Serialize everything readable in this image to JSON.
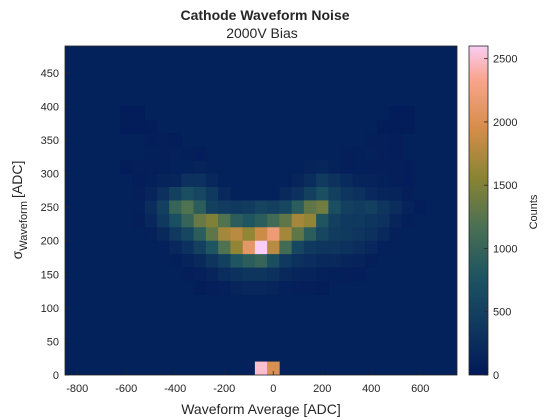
{
  "chart_data": {
    "type": "heatmap",
    "title": "Cathode Waveform Noise",
    "subtitle": "2000V Bias",
    "xlabel": "Waveform Average [ADC]",
    "ylabel_sigma": "σ",
    "ylabel_sub": "Waveform",
    "ylabel_unit": "[ADC]",
    "colorbar_label": "Counts",
    "xlim": [
      -850,
      750
    ],
    "ylim": [
      0,
      490
    ],
    "xticks": [
      -800,
      -600,
      -400,
      -200,
      0,
      200,
      400,
      600
    ],
    "yticks": [
      0,
      50,
      100,
      150,
      200,
      250,
      300,
      350,
      400,
      450
    ],
    "clim": [
      0,
      2600
    ],
    "cticks": [
      0,
      500,
      1000,
      1500,
      2000,
      2500
    ],
    "bin_width_x": 50,
    "bin_width_y": 20,
    "colormap": "batlow-like (dark navy → teal → olive → orange → pink)",
    "background_color": "#03215a",
    "cells": [
      [
        -50,
        0,
        2500
      ],
      [
        0,
        0,
        2000
      ],
      [
        -300,
        300,
        120
      ],
      [
        -250,
        300,
        100
      ],
      [
        150,
        300,
        130
      ],
      [
        200,
        300,
        160
      ],
      [
        250,
        300,
        110
      ],
      [
        300,
        300,
        80
      ],
      [
        -400,
        280,
        150
      ],
      [
        -350,
        280,
        300
      ],
      [
        -300,
        280,
        300
      ],
      [
        -250,
        280,
        180
      ],
      [
        100,
        280,
        150
      ],
      [
        150,
        280,
        250
      ],
      [
        200,
        280,
        420
      ],
      [
        250,
        280,
        320
      ],
      [
        300,
        280,
        220
      ],
      [
        350,
        280,
        120
      ],
      [
        -450,
        260,
        300
      ],
      [
        -400,
        260,
        500
      ],
      [
        -350,
        260,
        700
      ],
      [
        -300,
        260,
        600
      ],
      [
        -250,
        260,
        400
      ],
      [
        -200,
        260,
        200
      ],
      [
        50,
        260,
        200
      ],
      [
        100,
        260,
        300
      ],
      [
        150,
        260,
        500
      ],
      [
        200,
        260,
        700
      ],
      [
        250,
        260,
        500
      ],
      [
        300,
        260,
        350
      ],
      [
        350,
        260,
        300
      ],
      [
        400,
        260,
        200
      ],
      [
        450,
        260,
        150
      ],
      [
        -500,
        240,
        250
      ],
      [
        -450,
        240,
        500
      ],
      [
        -400,
        240,
        1000
      ],
      [
        -350,
        240,
        1200
      ],
      [
        -300,
        240,
        900
      ],
      [
        -250,
        240,
        500
      ],
      [
        -200,
        240,
        450
      ],
      [
        -150,
        240,
        400
      ],
      [
        -100,
        240,
        450
      ],
      [
        -50,
        240,
        550
      ],
      [
        0,
        240,
        500
      ],
      [
        50,
        240,
        600
      ],
      [
        100,
        240,
        900
      ],
      [
        150,
        240,
        1300
      ],
      [
        200,
        240,
        1400
      ],
      [
        250,
        240,
        700
      ],
      [
        300,
        240,
        500
      ],
      [
        350,
        240,
        450
      ],
      [
        400,
        240,
        500
      ],
      [
        450,
        240,
        350
      ],
      [
        500,
        240,
        250
      ],
      [
        -450,
        220,
        400
      ],
      [
        -400,
        220,
        700
      ],
      [
        -350,
        220,
        1000
      ],
      [
        -300,
        220,
        1350
      ],
      [
        -250,
        220,
        1500
      ],
      [
        -200,
        220,
        1200
      ],
      [
        -150,
        220,
        900
      ],
      [
        -100,
        220,
        800
      ],
      [
        -50,
        220,
        900
      ],
      [
        0,
        220,
        1100
      ],
      [
        50,
        220,
        1300
      ],
      [
        100,
        220,
        1700
      ],
      [
        150,
        220,
        1600
      ],
      [
        200,
        220,
        800
      ],
      [
        250,
        220,
        500
      ],
      [
        300,
        220,
        400
      ],
      [
        350,
        220,
        400
      ],
      [
        400,
        220,
        350
      ],
      [
        450,
        220,
        300
      ],
      [
        -400,
        200,
        400
      ],
      [
        -350,
        200,
        600
      ],
      [
        -300,
        200,
        900
      ],
      [
        -250,
        200,
        1300
      ],
      [
        -200,
        200,
        1700
      ],
      [
        -150,
        200,
        1800
      ],
      [
        -100,
        200,
        1600
      ],
      [
        -50,
        200,
        1900
      ],
      [
        0,
        200,
        2200
      ],
      [
        50,
        200,
        1700
      ],
      [
        100,
        200,
        1300
      ],
      [
        150,
        200,
        900
      ],
      [
        200,
        200,
        600
      ],
      [
        250,
        200,
        450
      ],
      [
        300,
        200,
        400
      ],
      [
        350,
        200,
        350
      ],
      [
        400,
        200,
        300
      ],
      [
        -350,
        180,
        300
      ],
      [
        -300,
        180,
        500
      ],
      [
        -250,
        180,
        800
      ],
      [
        -200,
        180,
        1200
      ],
      [
        -150,
        180,
        1600
      ],
      [
        -100,
        180,
        2100
      ],
      [
        -50,
        180,
        2600
      ],
      [
        0,
        180,
        1800
      ],
      [
        50,
        180,
        1100
      ],
      [
        100,
        180,
        600
      ],
      [
        150,
        180,
        400
      ],
      [
        200,
        180,
        350
      ],
      [
        250,
        180,
        350
      ],
      [
        300,
        180,
        300
      ],
      [
        350,
        180,
        250
      ],
      [
        -300,
        160,
        200
      ],
      [
        -250,
        160,
        350
      ],
      [
        -200,
        160,
        500
      ],
      [
        -150,
        160,
        800
      ],
      [
        -100,
        160,
        900
      ],
      [
        -50,
        160,
        1000
      ],
      [
        0,
        160,
        700
      ],
      [
        50,
        160,
        400
      ],
      [
        100,
        160,
        300
      ],
      [
        150,
        160,
        250
      ],
      [
        200,
        160,
        200
      ],
      [
        250,
        160,
        200
      ],
      [
        300,
        160,
        150
      ],
      [
        -250,
        140,
        150
      ],
      [
        -200,
        140,
        250
      ],
      [
        -150,
        140,
        300
      ],
      [
        -100,
        140,
        350
      ],
      [
        -50,
        140,
        350
      ],
      [
        0,
        140,
        300
      ],
      [
        50,
        140,
        200
      ],
      [
        100,
        140,
        150
      ],
      [
        150,
        140,
        120
      ],
      [
        200,
        140,
        100
      ],
      [
        -200,
        120,
        100
      ],
      [
        -150,
        120,
        150
      ],
      [
        -100,
        120,
        180
      ],
      [
        -50,
        120,
        180
      ],
      [
        0,
        120,
        150
      ],
      [
        50,
        120,
        100
      ],
      [
        -500,
        320,
        90
      ],
      [
        -450,
        320,
        80
      ],
      [
        -400,
        320,
        100
      ],
      [
        -350,
        320,
        90
      ],
      [
        -300,
        320,
        60
      ],
      [
        300,
        320,
        80
      ],
      [
        350,
        320,
        90
      ],
      [
        400,
        320,
        100
      ],
      [
        450,
        320,
        80
      ],
      [
        500,
        320,
        60
      ],
      [
        -500,
        340,
        60
      ],
      [
        -450,
        340,
        70
      ],
      [
        -400,
        340,
        60
      ],
      [
        400,
        340,
        70
      ],
      [
        450,
        340,
        80
      ],
      [
        500,
        340,
        60
      ],
      [
        -550,
        280,
        60
      ],
      [
        -500,
        280,
        90
      ],
      [
        -450,
        280,
        120
      ],
      [
        400,
        280,
        120
      ],
      [
        450,
        280,
        100
      ],
      [
        500,
        280,
        80
      ],
      [
        550,
        280,
        60
      ],
      [
        -550,
        260,
        80
      ],
      [
        -500,
        260,
        150
      ],
      [
        500,
        260,
        120
      ],
      [
        550,
        260,
        80
      ],
      [
        -550,
        240,
        100
      ],
      [
        550,
        240,
        120
      ],
      [
        600,
        240,
        60
      ],
      [
        -550,
        220,
        80
      ],
      [
        -500,
        220,
        180
      ],
      [
        500,
        220,
        150
      ],
      [
        550,
        220,
        90
      ],
      [
        -500,
        200,
        100
      ],
      [
        -450,
        200,
        200
      ],
      [
        450,
        200,
        200
      ],
      [
        500,
        200,
        100
      ],
      [
        -450,
        180,
        100
      ],
      [
        -400,
        180,
        180
      ],
      [
        400,
        180,
        180
      ],
      [
        450,
        180,
        100
      ],
      [
        -400,
        160,
        90
      ],
      [
        -350,
        160,
        130
      ],
      [
        350,
        160,
        120
      ],
      [
        400,
        160,
        80
      ],
      [
        -350,
        140,
        70
      ],
      [
        -300,
        140,
        100
      ],
      [
        250,
        140,
        90
      ],
      [
        300,
        140,
        80
      ],
      [
        350,
        140,
        60
      ],
      [
        -300,
        120,
        60
      ],
      [
        -250,
        120,
        80
      ],
      [
        100,
        120,
        80
      ],
      [
        150,
        120,
        70
      ],
      [
        200,
        120,
        60
      ],
      [
        -600,
        380,
        40
      ],
      [
        -550,
        380,
        40
      ],
      [
        500,
        380,
        40
      ],
      [
        550,
        380,
        40
      ],
      [
        -600,
        360,
        50
      ],
      [
        -550,
        360,
        50
      ],
      [
        -500,
        360,
        50
      ],
      [
        450,
        360,
        50
      ],
      [
        500,
        360,
        50
      ],
      [
        550,
        360,
        50
      ],
      [
        -600,
        300,
        50
      ],
      [
        -550,
        300,
        70
      ],
      [
        -500,
        300,
        80
      ],
      [
        -450,
        300,
        90
      ],
      [
        350,
        300,
        90
      ],
      [
        400,
        300,
        90
      ],
      [
        450,
        300,
        80
      ],
      [
        500,
        300,
        70
      ],
      [
        550,
        300,
        60
      ]
    ]
  }
}
